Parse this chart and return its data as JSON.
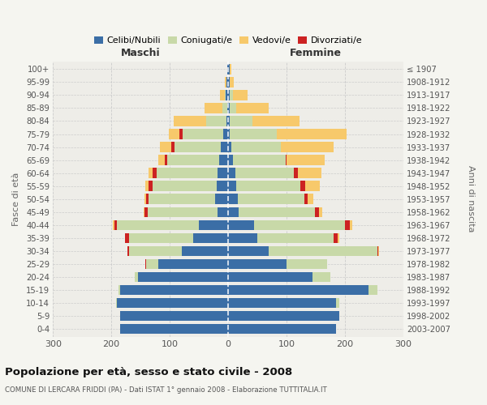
{
  "age_groups": [
    "0-4",
    "5-9",
    "10-14",
    "15-19",
    "20-24",
    "25-29",
    "30-34",
    "35-39",
    "40-44",
    "45-49",
    "50-54",
    "55-59",
    "60-64",
    "65-69",
    "70-74",
    "75-79",
    "80-84",
    "85-89",
    "90-94",
    "95-99",
    "100+"
  ],
  "birth_years": [
    "2003-2007",
    "1998-2002",
    "1993-1997",
    "1988-1992",
    "1983-1987",
    "1978-1982",
    "1973-1977",
    "1968-1972",
    "1963-1967",
    "1958-1962",
    "1953-1957",
    "1948-1952",
    "1943-1947",
    "1938-1942",
    "1933-1937",
    "1928-1932",
    "1923-1927",
    "1918-1922",
    "1913-1917",
    "1908-1912",
    "≤ 1907"
  ],
  "colors": {
    "celibe": "#3b6ea6",
    "coniugato": "#c8d9a8",
    "vedovo": "#f7c96b",
    "divorziato": "#cc2222"
  },
  "males": {
    "celibe": [
      185,
      185,
      190,
      185,
      155,
      120,
      80,
      60,
      50,
      18,
      22,
      20,
      18,
      15,
      12,
      8,
      3,
      2,
      4,
      3,
      2
    ],
    "coniugato": [
      0,
      0,
      2,
      3,
      5,
      20,
      90,
      110,
      140,
      120,
      115,
      110,
      105,
      90,
      80,
      70,
      35,
      8,
      2,
      0,
      0
    ],
    "vedovo": [
      0,
      0,
      0,
      0,
      0,
      0,
      0,
      0,
      2,
      2,
      3,
      6,
      8,
      12,
      20,
      18,
      55,
      30,
      8,
      2,
      0
    ],
    "divorziato": [
      0,
      0,
      0,
      0,
      0,
      2,
      2,
      7,
      5,
      5,
      3,
      6,
      6,
      3,
      5,
      5,
      0,
      0,
      0,
      0,
      0
    ]
  },
  "females": {
    "nubile": [
      185,
      190,
      185,
      240,
      145,
      100,
      70,
      50,
      45,
      18,
      16,
      14,
      12,
      8,
      5,
      3,
      2,
      2,
      3,
      2,
      2
    ],
    "coniugata": [
      0,
      0,
      5,
      15,
      30,
      70,
      185,
      130,
      155,
      130,
      115,
      110,
      100,
      90,
      85,
      80,
      40,
      12,
      5,
      0,
      0
    ],
    "vedova": [
      0,
      0,
      0,
      0,
      0,
      0,
      2,
      2,
      5,
      5,
      10,
      25,
      40,
      65,
      90,
      120,
      80,
      55,
      25,
      8,
      3
    ],
    "divorziata": [
      0,
      0,
      0,
      0,
      0,
      0,
      2,
      8,
      8,
      8,
      5,
      8,
      8,
      2,
      0,
      0,
      0,
      0,
      0,
      0,
      0
    ]
  },
  "xlim": 300,
  "title": "Popolazione per età, sesso e stato civile - 2008",
  "subtitle": "COMUNE DI LERCARA FRIDDI (PA) - Dati ISTAT 1° gennaio 2008 - Elaborazione TUTTITALIA.IT",
  "ylabel_left": "Fasce di età",
  "ylabel_right": "Anni di nascita",
  "xlabel_left": "Maschi",
  "xlabel_right": "Femmine",
  "bg_color": "#f5f5f0",
  "plot_bg": "#eeede8"
}
